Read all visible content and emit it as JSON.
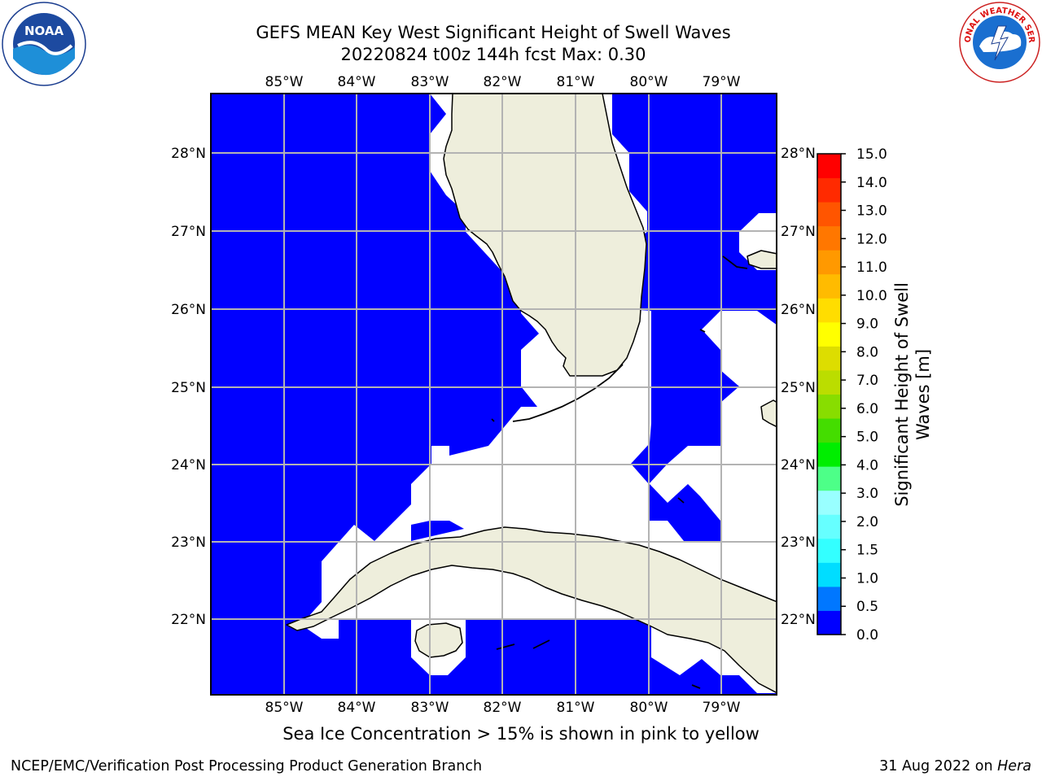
{
  "title_line1": "GEFS MEAN Key West Significant Height of Swell Waves",
  "title_line2": "20220824 t00z 144h fcst   Max: 0.30",
  "logos": {
    "left": "noaa-logo",
    "right": "national-weather-service-logo",
    "left_text": "NOAA",
    "right_text": "NATIONAL WEATHER SERVICE"
  },
  "map": {
    "lon_labels": [
      "85°W",
      "84°W",
      "83°W",
      "82°W",
      "81°W",
      "80°W",
      "79°W"
    ],
    "lat_labels": [
      "28°N",
      "27°N",
      "26°N",
      "25°N",
      "24°N",
      "23°N",
      "22°N"
    ],
    "colors": {
      "ocean_fill": "#0000ff",
      "land": "#eeeedc",
      "no_data": "#ffffff",
      "grid": "#b3b3b3"
    }
  },
  "colorbar": {
    "label": "Significant Height of Swell Waves [m]",
    "label_line1": "Significant Height of Swell",
    "label_line2": "Waves [m]",
    "ticks": [
      "0.0",
      "0.5",
      "1.0",
      "1.5",
      "2.0",
      "3.0",
      "4.0",
      "5.0",
      "6.0",
      "7.0",
      "8.0",
      "9.0",
      "10.0",
      "11.0",
      "12.0",
      "13.0",
      "14.0",
      "15.0"
    ],
    "colors": [
      "#0000ff",
      "#0077ff",
      "#00ddff",
      "#33ffff",
      "#66ffff",
      "#99ffff",
      "#4dff88",
      "#00ee00",
      "#44dd00",
      "#88dd00",
      "#bbdd00",
      "#dddd00",
      "#ffff00",
      "#ffdd00",
      "#ffbb00",
      "#ff9900",
      "#ff7700",
      "#ff5500",
      "#ff2a00",
      "#ff0000"
    ]
  },
  "footer": {
    "sea_ice_note": "Sea Ice Concentration > 15% is shown in pink to yellow",
    "credit": "NCEP/EMC/Verification Post Processing Product Generation Branch",
    "date": "31 Aug 2022 on ",
    "machine": "Hera"
  }
}
